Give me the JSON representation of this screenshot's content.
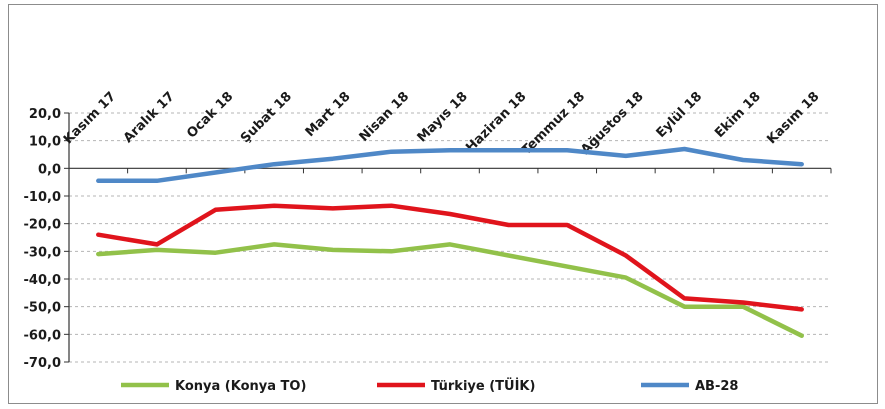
{
  "chart_data": {
    "type": "line",
    "categories": [
      "Kasım 17",
      "Aralık 17",
      "Ocak 18",
      "Şubat 18",
      "Mart 18",
      "Nisan 18",
      "Mayıs 18",
      "Haziran 18",
      "Temmuz 18",
      "Ağustos 18",
      "Eylül 18",
      "Ekim 18",
      "Kasım 18"
    ],
    "ylim": [
      -70,
      20
    ],
    "yticks": [
      "20,0",
      "10,0",
      "0,0",
      "-10,0",
      "-20,0",
      "-30,0",
      "-40,0",
      "-50,0",
      "-60,0",
      "-70,0"
    ],
    "ytick_values": [
      20,
      10,
      0,
      -10,
      -20,
      -30,
      -40,
      -50,
      -60,
      -70
    ],
    "grid": true,
    "legend_position": "bottom",
    "series": [
      {
        "name": "Konya (Konya TO)",
        "color": "#92c14a",
        "values": [
          -31,
          -29.5,
          -30.5,
          -27.5,
          -29.5,
          -30,
          -27.5,
          -31.5,
          -35.5,
          -39.5,
          -50,
          -50,
          -60.5
        ]
      },
      {
        "name": "Türkiye (TÜİK)",
        "color": "#e0141c",
        "values": [
          -24,
          -27.5,
          -15,
          -13.5,
          -14.5,
          -13.5,
          -16.5,
          -20.5,
          -20.5,
          -31.5,
          -47,
          -48.5,
          -51
        ]
      },
      {
        "name": "AB-28",
        "color": "#4f88c7",
        "values": [
          -4.5,
          -4.5,
          -1.5,
          1.5,
          3.5,
          6,
          6.5,
          6.5,
          6.5,
          4.5,
          7,
          3,
          1.5
        ]
      }
    ]
  }
}
